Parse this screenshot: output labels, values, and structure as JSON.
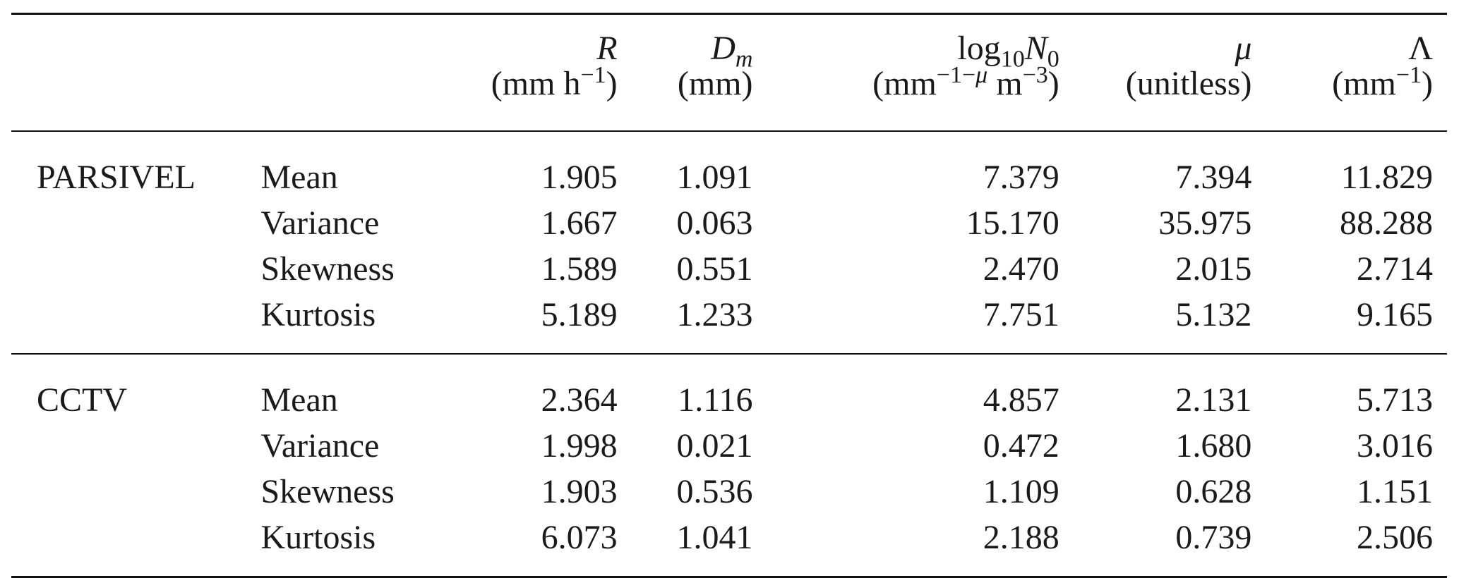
{
  "header": {
    "R": {
      "symbol": "R",
      "unit_prefix": "(mm h",
      "unit_sup": "−1",
      "unit_suffix": ")"
    },
    "Dm": {
      "symbol": "D",
      "symbol_sub": "m",
      "unit": "(mm)"
    },
    "N0": {
      "prefix": "log",
      "prefix_sub": "10",
      "symbol": "N",
      "symbol_sub": "0",
      "unit_prefix": "(mm",
      "unit_sup_a": "−1−",
      "unit_sup_mu": "μ",
      "unit_mid": " m",
      "unit_sup_b": "−3",
      "unit_suffix": ")"
    },
    "mu": {
      "symbol": "μ",
      "unit": "(unitless)"
    },
    "lambda": {
      "symbol": "Λ",
      "unit_prefix": "(mm",
      "unit_sup": "−1",
      "unit_suffix": ")"
    }
  },
  "groups": [
    {
      "name": "PARSIVEL",
      "rows": [
        {
          "stat": "Mean",
          "values": [
            "1.905",
            "1.091",
            "7.379",
            "7.394",
            "11.829"
          ]
        },
        {
          "stat": "Variance",
          "values": [
            "1.667",
            "0.063",
            "15.170",
            "35.975",
            "88.288"
          ]
        },
        {
          "stat": "Skewness",
          "values": [
            "1.589",
            "0.551",
            "2.470",
            "2.015",
            "2.714"
          ]
        },
        {
          "stat": "Kurtosis",
          "values": [
            "5.189",
            "1.233",
            "7.751",
            "5.132",
            "9.165"
          ]
        }
      ]
    },
    {
      "name": "CCTV",
      "rows": [
        {
          "stat": "Mean",
          "values": [
            "2.364",
            "1.116",
            "4.857",
            "2.131",
            "5.713"
          ]
        },
        {
          "stat": "Variance",
          "values": [
            "1.998",
            "0.021",
            "0.472",
            "1.680",
            "3.016"
          ]
        },
        {
          "stat": "Skewness",
          "values": [
            "1.903",
            "0.536",
            "1.109",
            "0.628",
            "1.151"
          ]
        },
        {
          "stat": "Kurtosis",
          "values": [
            "6.073",
            "1.041",
            "2.188",
            "0.739",
            "2.506"
          ]
        }
      ]
    }
  ]
}
